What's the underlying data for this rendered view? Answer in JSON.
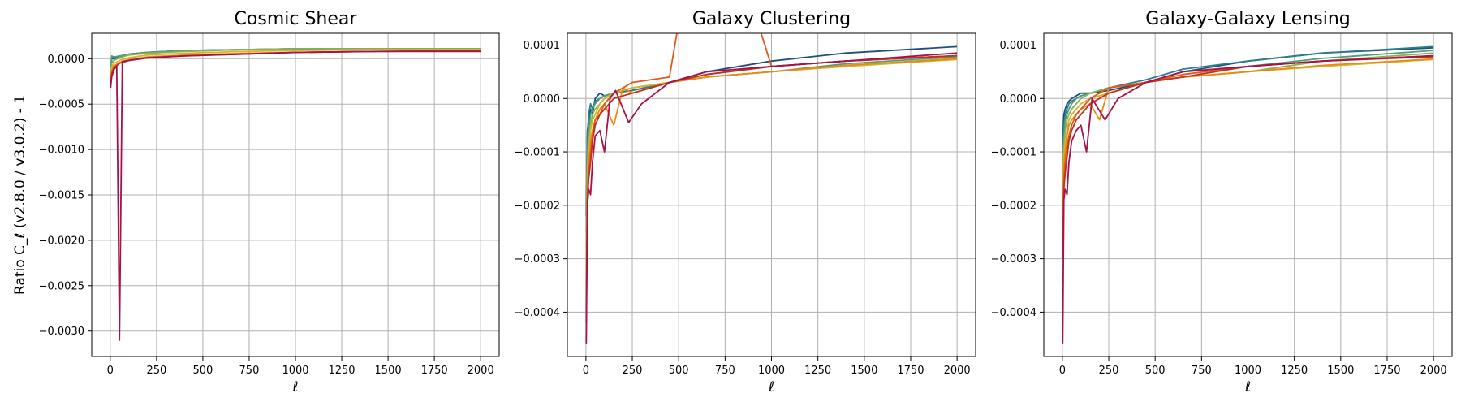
{
  "chart_data": [
    {
      "type": "line",
      "title": "Cosmic Shear",
      "xlabel": "ℓ",
      "ylabel": "Ratio C_ℓ (v2.8.0 / v3.0.2) - 1",
      "xlim": [
        -100,
        2100
      ],
      "ylim": [
        -0.00328,
        0.00028
      ],
      "xticks": [
        0,
        250,
        500,
        750,
        1000,
        1250,
        1500,
        1750,
        2000
      ],
      "xtick_labels": [
        "0",
        "250",
        "500",
        "750",
        "1000",
        "1250",
        "1500",
        "1750",
        "2000"
      ],
      "yticks": [
        0.0,
        -0.0005,
        -0.001,
        -0.0015,
        -0.002,
        -0.0025,
        -0.003
      ],
      "ytick_labels": [
        "0.0000",
        "−0.0005",
        "−0.0010",
        "−0.0015",
        "−0.0020",
        "−0.0025",
        "−0.0030"
      ],
      "grid": true,
      "series": [
        {
          "color": "#1f4e79",
          "x": [
            2,
            8,
            20,
            50,
            100,
            200,
            400,
            700,
            1000,
            1400,
            2000
          ],
          "y": [
            -0.0002,
            0.0,
            0.0,
            2e-05,
            5e-05,
            7e-05,
            9e-05,
            0.0001,
            0.00011,
            0.00011,
            0.00011
          ]
        },
        {
          "color": "#2a7f8c",
          "x": [
            2,
            8,
            20,
            50,
            100,
            200,
            400,
            700,
            1000,
            1400,
            2000
          ],
          "y": [
            -0.00018,
            2e-05,
            1e-05,
            2e-05,
            5e-05,
            7e-05,
            9e-05,
            0.0001,
            0.00011,
            0.00011,
            0.00011
          ]
        },
        {
          "color": "#4f9d7b",
          "x": [
            2,
            8,
            20,
            50,
            100,
            200,
            400,
            700,
            1000,
            1400,
            2000
          ],
          "y": [
            -0.00016,
            3e-05,
            2e-05,
            3e-05,
            5e-05,
            7e-05,
            9e-05,
            0.0001,
            0.00011,
            0.00011,
            0.00011
          ]
        },
        {
          "color": "#8fae55",
          "x": [
            2,
            8,
            20,
            50,
            100,
            200,
            400,
            700,
            1000,
            1400,
            2000
          ],
          "y": [
            -0.0002,
            -5e-05,
            -2e-05,
            1e-05,
            4e-05,
            6e-05,
            8e-05,
            0.0001,
            0.00011,
            0.00011,
            0.00011
          ]
        },
        {
          "color": "#d6b52a",
          "x": [
            2,
            8,
            20,
            50,
            100,
            200,
            400,
            700,
            1000,
            1400,
            2000
          ],
          "y": [
            -0.00022,
            -0.0001,
            -5e-05,
            -2e-05,
            1e-05,
            4e-05,
            6e-05,
            8e-05,
            9e-05,
            0.0001,
            0.0001
          ]
        },
        {
          "color": "#e88b16",
          "x": [
            2,
            8,
            20,
            50,
            100,
            200,
            400,
            700,
            1000,
            1400,
            2000
          ],
          "y": [
            -0.00025,
            -0.00013,
            -8e-05,
            -4e-05,
            -1e-05,
            2e-05,
            4e-05,
            6e-05,
            7e-05,
            8e-05,
            9e-05
          ]
        },
        {
          "color": "#c2311f",
          "x": [
            2,
            8,
            20,
            50,
            100,
            200,
            400,
            700,
            1000,
            1400,
            2000
          ],
          "y": [
            -0.00028,
            -0.00016,
            -0.0001,
            -5e-05,
            -2e-05,
            1e-05,
            3e-05,
            5e-05,
            7e-05,
            8e-05,
            9e-05
          ]
        },
        {
          "color": "#a6124a",
          "x": [
            2,
            8,
            20,
            35,
            50,
            65,
            100,
            200,
            400,
            700,
            1000,
            1400,
            2000
          ],
          "y": [
            -0.00032,
            -0.0002,
            -0.00012,
            -8e-05,
            -0.0031,
            -3e-05,
            -2e-05,
            1e-05,
            3e-05,
            5e-05,
            7e-05,
            8e-05,
            8e-05
          ]
        }
      ]
    },
    {
      "type": "line",
      "title": "Galaxy Clustering",
      "xlabel": "ℓ",
      "ylabel": "",
      "xlim": [
        -100,
        2100
      ],
      "ylim": [
        -0.000483,
        0.000122
      ],
      "xticks": [
        0,
        250,
        500,
        750,
        1000,
        1250,
        1500,
        1750,
        2000
      ],
      "xtick_labels": [
        "0",
        "250",
        "500",
        "750",
        "1000",
        "1250",
        "1500",
        "1750",
        "2000"
      ],
      "yticks": [
        0.0001,
        0.0,
        -0.0001,
        -0.0002,
        -0.0003,
        -0.0004
      ],
      "ytick_labels": [
        "0.0001",
        "0.0000",
        "−0.0001",
        "−0.0002",
        "−0.0003",
        "−0.0004"
      ],
      "grid": true,
      "series": [
        {
          "color": "#1f4e79",
          "x": [
            2,
            8,
            15,
            25,
            35,
            50,
            75,
            100,
            150,
            250,
            450,
            650,
            1000,
            1400,
            2000
          ],
          "y": [
            -0.00022,
            -6e-05,
            -4e-05,
            -2e-05,
            -3e-05,
            0.0,
            1e-05,
            5e-06,
            1e-05,
            1.5e-05,
            3e-05,
            5e-05,
            7e-05,
            8.5e-05,
            9.7e-05
          ]
        },
        {
          "color": "#2a7f8c",
          "x": [
            2,
            8,
            15,
            25,
            35,
            50,
            75,
            100,
            150,
            250,
            450,
            650,
            1000,
            1400,
            2000
          ],
          "y": [
            -0.0002,
            -7e-05,
            -3e-05,
            -1e-05,
            -2e-05,
            -5e-06,
            0.0,
            5e-06,
            1e-05,
            1.5e-05,
            3e-05,
            4.5e-05,
            6e-05,
            7e-05,
            8e-05
          ]
        },
        {
          "color": "#4f9d7b",
          "x": [
            2,
            8,
            15,
            25,
            35,
            50,
            75,
            100,
            150,
            250,
            450,
            650,
            1000,
            1400,
            2000
          ],
          "y": [
            -0.00025,
            -0.0001,
            -6e-05,
            -3e-05,
            -2e-05,
            -1e-05,
            0.0,
            5e-06,
            1e-05,
            2e-05,
            3e-05,
            4e-05,
            5e-05,
            6.5e-05,
            7.8e-05
          ]
        },
        {
          "color": "#8fae55",
          "x": [
            2,
            8,
            15,
            25,
            35,
            50,
            75,
            100,
            150,
            250,
            450,
            650,
            1000,
            1400,
            2000
          ],
          "y": [
            -0.00028,
            -0.00012,
            -8e-05,
            -5e-05,
            -3e-05,
            -2e-05,
            -1e-05,
            0.0,
            1e-05,
            2e-05,
            3e-05,
            4e-05,
            5e-05,
            6.2e-05,
            7.5e-05
          ]
        },
        {
          "color": "#d6b52a",
          "x": [
            2,
            8,
            15,
            25,
            35,
            50,
            75,
            100,
            150,
            250,
            450,
            650,
            1000,
            1400,
            2000
          ],
          "y": [
            -0.0003,
            -0.00014,
            -0.0001,
            -6e-05,
            -4e-05,
            -3e-05,
            -1e-05,
            0.0,
            1e-05,
            2e-05,
            3e-05,
            4e-05,
            5e-05,
            6e-05,
            7.3e-05
          ]
        },
        {
          "color": "#e88b16",
          "x": [
            2,
            8,
            15,
            25,
            35,
            50,
            75,
            100,
            150,
            200,
            250,
            450,
            650,
            1000,
            1400,
            2000
          ],
          "y": [
            -0.00035,
            -0.00016,
            -0.00012,
            -8e-05,
            -6e-05,
            -4e-05,
            -2e-05,
            -1e-05,
            -5e-05,
            2e-05,
            1e-05,
            3e-05,
            4e-05,
            5e-05,
            6.2e-05,
            7.4e-05
          ]
        },
        {
          "color": "#e0581c",
          "x": [
            2,
            8,
            15,
            25,
            35,
            50,
            75,
            100,
            150,
            250,
            450,
            650,
            1000,
            1400,
            2000
          ],
          "y": [
            -0.0004,
            -0.00018,
            -0.00014,
            -0.0001,
            -7e-05,
            -4e-05,
            -3e-05,
            -1e-05,
            1e-05,
            3e-05,
            4e-05,
            0.00045,
            6e-05,
            7e-05,
            8e-05
          ]
        },
        {
          "color": "#c2311f",
          "x": [
            2,
            8,
            15,
            25,
            35,
            50,
            75,
            100,
            150,
            250,
            450,
            650,
            1000,
            1400,
            2000
          ],
          "y": [
            -0.00042,
            -0.00019,
            -0.00015,
            -0.00012,
            -8e-05,
            -5e-05,
            -3e-05,
            -2e-05,
            0.0,
            1e-05,
            3e-05,
            4.5e-05,
            6e-05,
            7e-05,
            8e-05
          ]
        },
        {
          "color": "#a6124a",
          "x": [
            2,
            8,
            15,
            25,
            35,
            50,
            75,
            100,
            130,
            160,
            230,
            300,
            450,
            650,
            1000,
            1400,
            2000
          ],
          "y": [
            -0.00046,
            -0.0002,
            -0.00017,
            -0.00018,
            -0.00012,
            -7e-05,
            -6e-05,
            -0.0001,
            0.0,
            1.5e-05,
            -4.5e-05,
            -1e-05,
            3e-05,
            5e-05,
            6e-05,
            7e-05,
            8.5e-05
          ]
        }
      ]
    },
    {
      "type": "line",
      "title": "Galaxy-Galaxy Lensing",
      "xlabel": "ℓ",
      "ylabel": "",
      "xlim": [
        -100,
        2100
      ],
      "ylim": [
        -0.000483,
        0.000122
      ],
      "xticks": [
        0,
        250,
        500,
        750,
        1000,
        1250,
        1500,
        1750,
        2000
      ],
      "xtick_labels": [
        "0",
        "250",
        "500",
        "750",
        "1000",
        "1250",
        "1500",
        "1750",
        "2000"
      ],
      "yticks": [
        0.0001,
        0.0,
        -0.0001,
        -0.0002,
        -0.0003,
        -0.0004
      ],
      "ytick_labels": [
        "0.0001",
        "0.0000",
        "−0.0001",
        "−0.0002",
        "−0.0003",
        "−0.0004"
      ],
      "grid": true,
      "series": [
        {
          "color": "#1f4e79",
          "x": [
            2,
            8,
            15,
            25,
            35,
            50,
            75,
            100,
            150,
            250,
            450,
            650,
            1000,
            1400,
            2000
          ],
          "y": [
            -8e-05,
            -3e-05,
            -2e-05,
            -1e-05,
            -5e-06,
            0.0,
            5e-06,
            1e-05,
            1e-05,
            1.5e-05,
            3e-05,
            5e-05,
            7e-05,
            8.5e-05,
            9.5e-05
          ]
        },
        {
          "color": "#2a7f8c",
          "x": [
            2,
            8,
            15,
            25,
            35,
            50,
            75,
            100,
            150,
            250,
            450,
            650,
            1000,
            1400,
            2000
          ],
          "y": [
            -0.0001,
            -5e-05,
            -3e-05,
            -2e-05,
            -1e-05,
            -5e-06,
            0.0,
            5e-06,
            1e-05,
            2e-05,
            3.5e-05,
            5.5e-05,
            7e-05,
            8.5e-05,
            9.7e-05
          ]
        },
        {
          "color": "#4f9d7b",
          "x": [
            2,
            8,
            15,
            25,
            35,
            50,
            75,
            100,
            150,
            250,
            450,
            650,
            1000,
            1400,
            2000
          ],
          "y": [
            -0.00012,
            -7e-05,
            -4e-05,
            -3e-05,
            -2e-05,
            -1e-05,
            0.0,
            5e-06,
            1e-05,
            2e-05,
            3e-05,
            5e-05,
            6e-05,
            7.5e-05,
            9e-05
          ]
        },
        {
          "color": "#8fae55",
          "x": [
            2,
            8,
            15,
            25,
            35,
            50,
            75,
            100,
            150,
            250,
            450,
            650,
            1000,
            1400,
            2000
          ],
          "y": [
            -0.00015,
            -9e-05,
            -6e-05,
            -4e-05,
            -3e-05,
            -2e-05,
            -1e-05,
            0.0,
            1e-05,
            2e-05,
            3e-05,
            4e-05,
            5e-05,
            7e-05,
            8.5e-05
          ]
        },
        {
          "color": "#d6b52a",
          "x": [
            2,
            8,
            15,
            25,
            35,
            50,
            75,
            100,
            150,
            250,
            450,
            650,
            1000,
            1400,
            2000
          ],
          "y": [
            -0.00018,
            -0.00011,
            -8e-05,
            -6e-05,
            -4e-05,
            -3e-05,
            -2e-05,
            -1e-05,
            0.0,
            1e-05,
            3e-05,
            4e-05,
            5e-05,
            6e-05,
            7.3e-05
          ]
        },
        {
          "color": "#e88b16",
          "x": [
            2,
            8,
            15,
            25,
            35,
            50,
            75,
            100,
            150,
            200,
            250,
            450,
            650,
            1000,
            1400,
            2000
          ],
          "y": [
            -0.00022,
            -0.00013,
            -0.0001,
            -7e-05,
            -5e-05,
            -4e-05,
            -3e-05,
            -2e-05,
            -1e-05,
            -4e-05,
            2e-05,
            3e-05,
            4e-05,
            5e-05,
            6.2e-05,
            7.4e-05
          ]
        },
        {
          "color": "#e0581c",
          "x": [
            2,
            8,
            15,
            25,
            35,
            50,
            75,
            100,
            150,
            250,
            450,
            650,
            1000,
            1400,
            2000
          ],
          "y": [
            -0.00026,
            -0.00015,
            -0.00012,
            -9e-05,
            -7e-05,
            -5e-05,
            -3e-05,
            -2e-05,
            0.0,
            2e-05,
            3e-05,
            4.5e-05,
            6e-05,
            7e-05,
            8e-05
          ]
        },
        {
          "color": "#c2311f",
          "x": [
            2,
            8,
            15,
            25,
            35,
            50,
            75,
            100,
            150,
            250,
            450,
            650,
            1000,
            1400,
            2000
          ],
          "y": [
            -0.0003,
            -0.00017,
            -0.00014,
            -0.00011,
            -8e-05,
            -6e-05,
            -4e-05,
            -3e-05,
            -1e-05,
            1e-05,
            3e-05,
            4e-05,
            6e-05,
            7e-05,
            7.8e-05
          ]
        },
        {
          "color": "#a6124a",
          "x": [
            2,
            8,
            15,
            25,
            35,
            50,
            75,
            100,
            130,
            160,
            230,
            300,
            450,
            650,
            1000,
            1400,
            2000
          ],
          "y": [
            -0.00046,
            -0.00019,
            -0.00017,
            -0.00018,
            -0.00012,
            -8e-05,
            -6e-05,
            -5e-05,
            -0.0001,
            0.0,
            -4e-05,
            0.0,
            3e-05,
            5e-05,
            6e-05,
            7e-05,
            8e-05
          ]
        }
      ]
    }
  ]
}
